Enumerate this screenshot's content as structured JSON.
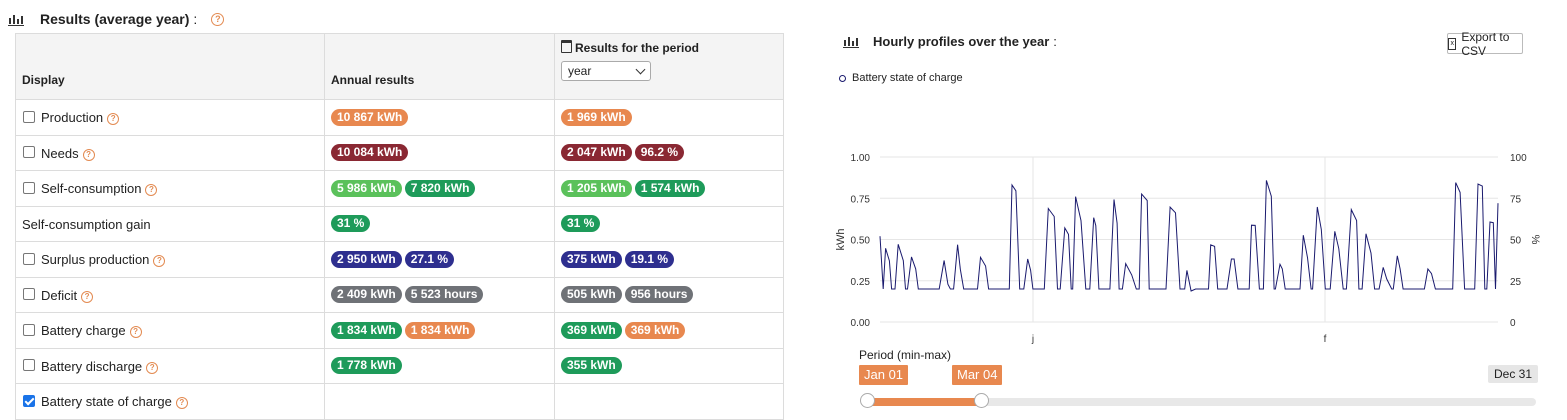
{
  "results": {
    "title": "Results (average year)",
    "title_suffix": ":",
    "help_icon": "help-icon",
    "columns": {
      "display": "Display",
      "annual": "Annual results",
      "period": "Results for the period",
      "period_select_value": "year"
    },
    "rows": [
      {
        "label": "Production",
        "checkbox": true,
        "checked": false,
        "help": true,
        "annual": [
          {
            "text": "10 867 kWh",
            "color": "#e8884f"
          }
        ],
        "period": [
          {
            "text": "1 969 kWh",
            "color": "#e8884f"
          }
        ]
      },
      {
        "label": "Needs",
        "checkbox": true,
        "checked": false,
        "help": true,
        "annual": [
          {
            "text": "10 084 kWh",
            "color": "#8a2833"
          }
        ],
        "period": [
          {
            "text": "2 047 kWh",
            "color": "#8a2833"
          },
          {
            "text": "96.2 %",
            "color": "#8a2833"
          }
        ]
      },
      {
        "label": "Self-consumption",
        "checkbox": true,
        "checked": false,
        "help": true,
        "annual": [
          {
            "text": "5 986 kWh",
            "color": "#5bc15b"
          },
          {
            "text": "7 820 kWh",
            "color": "#1e9b5a"
          }
        ],
        "period": [
          {
            "text": "1 205 kWh",
            "color": "#5bc15b"
          },
          {
            "text": "1 574 kWh",
            "color": "#1e9b5a"
          }
        ]
      },
      {
        "label": "Self-consumption gain",
        "checkbox": false,
        "checked": false,
        "help": false,
        "annual": [
          {
            "text": "31 %",
            "color": "#1e9b5a"
          }
        ],
        "period": [
          {
            "text": "31 %",
            "color": "#1e9b5a"
          }
        ]
      },
      {
        "label": "Surplus production",
        "checkbox": true,
        "checked": false,
        "help": true,
        "annual": [
          {
            "text": "2 950 kWh",
            "color": "#2e2f8f"
          },
          {
            "text": "27.1 %",
            "color": "#2e2f8f"
          }
        ],
        "period": [
          {
            "text": "375 kWh",
            "color": "#2e2f8f"
          },
          {
            "text": "19.1 %",
            "color": "#2e2f8f"
          }
        ]
      },
      {
        "label": "Deficit",
        "checkbox": true,
        "checked": false,
        "help": true,
        "annual": [
          {
            "text": "2 409 kWh",
            "color": "#6f7277"
          },
          {
            "text": "5 523 hours",
            "color": "#6f7277"
          }
        ],
        "period": [
          {
            "text": "505 kWh",
            "color": "#6f7277"
          },
          {
            "text": "956 hours",
            "color": "#6f7277"
          }
        ]
      },
      {
        "label": "Battery charge",
        "checkbox": true,
        "checked": false,
        "help": true,
        "annual": [
          {
            "text": "1 834 kWh",
            "color": "#1e9b5a"
          },
          {
            "text": "1 834 kWh",
            "color": "#e8884f"
          }
        ],
        "period": [
          {
            "text": "369 kWh",
            "color": "#1e9b5a"
          },
          {
            "text": "369 kWh",
            "color": "#e8884f"
          }
        ]
      },
      {
        "label": "Battery discharge",
        "checkbox": true,
        "checked": false,
        "help": true,
        "annual": [
          {
            "text": "1 778 kWh",
            "color": "#1e9b5a"
          }
        ],
        "period": [
          {
            "text": "355 kWh",
            "color": "#1e9b5a"
          }
        ]
      },
      {
        "label": "Battery state of charge",
        "checkbox": true,
        "checked": true,
        "help": true,
        "annual": [],
        "period": []
      }
    ]
  },
  "profiles": {
    "title": "Hourly profiles over the year",
    "title_suffix": ":",
    "export_label": "Export to CSV",
    "legend_label": "Battery state of charge",
    "period_label": "Period (min-max)",
    "period_start": "Jan 01",
    "period_end_selected": "Mar 04",
    "period_max": "Dec 31",
    "period_fraction": 0.17
  },
  "chart_data": {
    "type": "line",
    "series": [
      {
        "name": "Battery state of charge",
        "color": "#1a1a6e"
      }
    ],
    "ylabel": "kWh",
    "y2label": "%",
    "ylim": [
      0,
      1.0
    ],
    "y2lim": [
      0,
      100
    ],
    "yticks": [
      "0.00",
      "0.25",
      "0.50",
      "0.75",
      "1.00"
    ],
    "y2ticks": [
      "0",
      "25",
      "50",
      "75",
      "100"
    ],
    "xticks": [
      "j",
      "f"
    ],
    "grid": true
  }
}
